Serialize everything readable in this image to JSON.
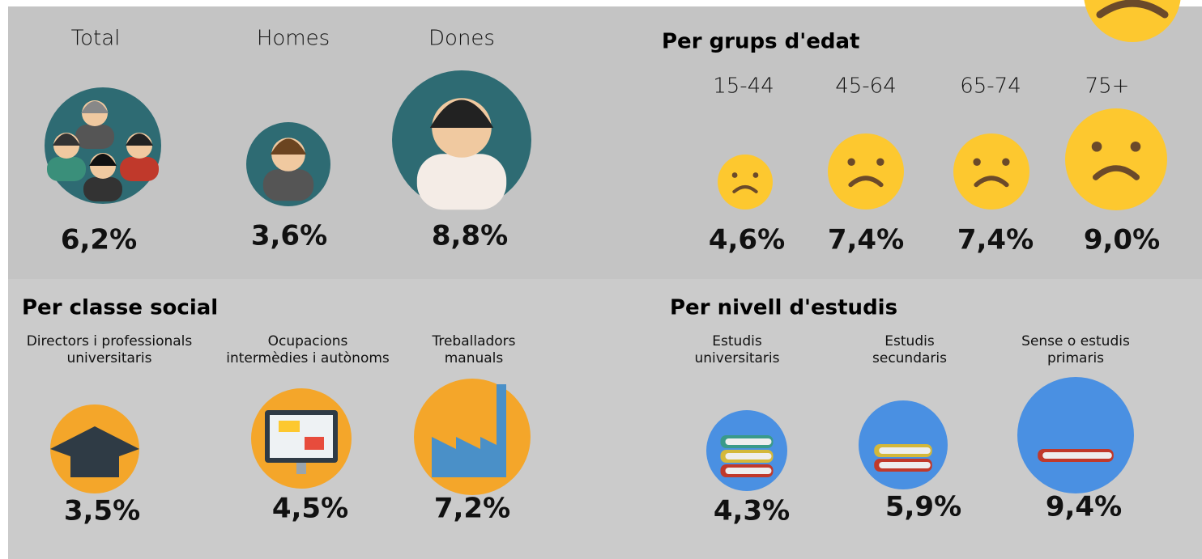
{
  "overall": [
    {
      "label": "Total",
      "value": "6,2%"
    },
    {
      "label": "Homes",
      "value": "3,6%"
    },
    {
      "label": "Dones",
      "value": "8,8%"
    }
  ],
  "age": {
    "title": "Per grups d'edat",
    "items": [
      {
        "label": "15-44",
        "value": "4,6%"
      },
      {
        "label": "45-64",
        "value": "7,4%"
      },
      {
        "label": "65-74",
        "value": "7,4%"
      },
      {
        "label": "75+",
        "value": "9,0%"
      }
    ]
  },
  "social_class": {
    "title": "Per classe social",
    "items": [
      {
        "label": [
          "Directors i professionals",
          "universitaris"
        ],
        "value": "3,5%"
      },
      {
        "label": [
          "Ocupacions",
          "intermèdies i autònoms"
        ],
        "value": "4,5%"
      },
      {
        "label": [
          "Treballadors",
          "manuals"
        ],
        "value": "7,2%"
      }
    ]
  },
  "education": {
    "title": "Per nivell d'estudis",
    "items": [
      {
        "label": [
          "Estudis",
          "universitaris"
        ],
        "value": "4,3%"
      },
      {
        "label": [
          "Estudis",
          "secundaris"
        ],
        "value": "5,9%"
      },
      {
        "label": [
          "Sense o estudis",
          "primaris"
        ],
        "value": "9,4%"
      }
    ]
  }
}
